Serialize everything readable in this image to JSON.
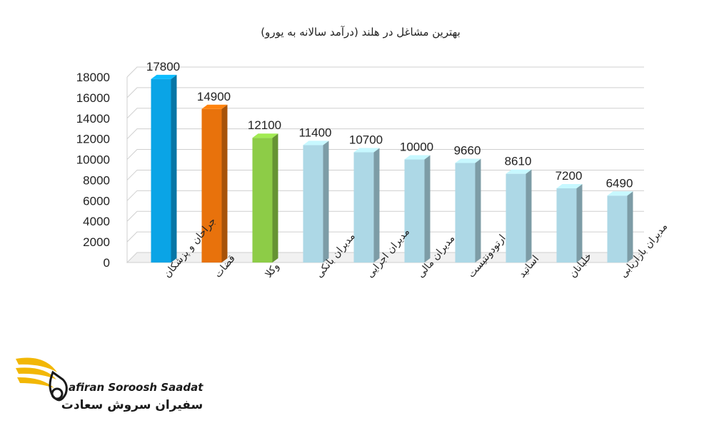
{
  "chart_data": {
    "type": "bar",
    "title": "بهترین مشاغل  در هلند (درآمد سالانه به یورو)",
    "xlabel": "",
    "ylabel": "",
    "ylim": [
      0,
      18000
    ],
    "yticks": [
      "0",
      "2000",
      "4000",
      "6000",
      "8000",
      "10000",
      "12000",
      "14000",
      "16000",
      "18000"
    ],
    "grid": true,
    "legend": "none",
    "categories": [
      "جراحان و پزشکان",
      "قضات",
      "وکلا",
      "مدیران بانکی",
      "مدیران اجرایی",
      "مدیران مالی",
      "ارتودونتیست",
      "اساتید",
      "خلبانان",
      "مدیران بازاریابی"
    ],
    "values": [
      17800,
      14900,
      12100,
      11400,
      10700,
      10000,
      9660,
      8610,
      7200,
      6490
    ],
    "value_labels": [
      "17800",
      "14900",
      "12100",
      "11400",
      "10700",
      "10000",
      "9660",
      "8610",
      "7200",
      "6490"
    ],
    "colors": [
      "#0aa4e6",
      "#e8720c",
      "#8dcc47",
      "#add8e6",
      "#add8e6",
      "#add8e6",
      "#add8e6",
      "#add8e6",
      "#add8e6",
      "#add8e6"
    ]
  },
  "logo": {
    "name_en": "afiran Soroosh Saadat",
    "name_fa": "سفیران سروش سعادت",
    "colors": {
      "gold": "#f2b705",
      "dark": "#1a1a1a"
    }
  }
}
